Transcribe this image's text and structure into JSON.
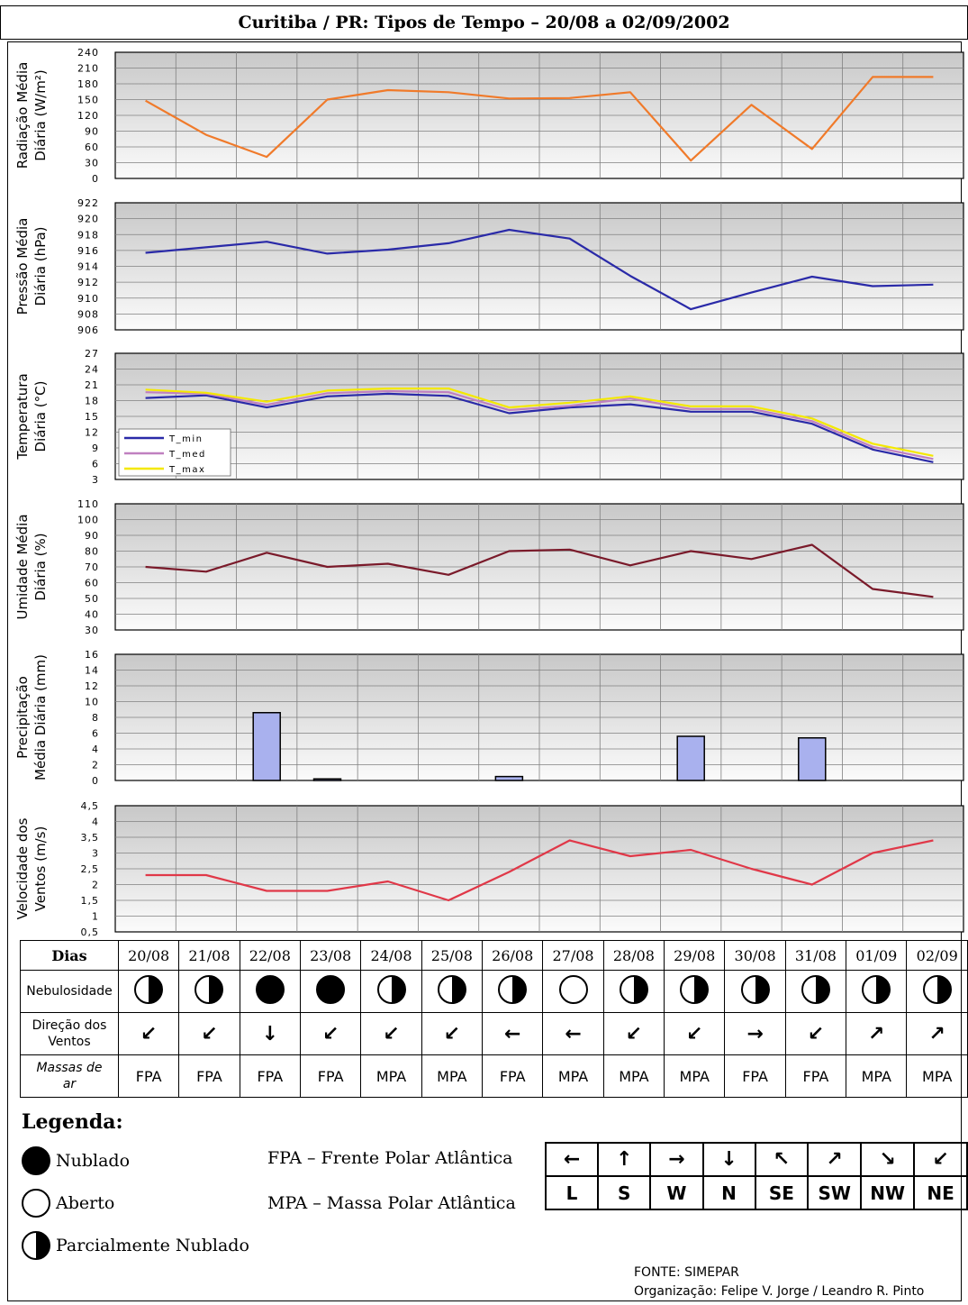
{
  "title": "Curitiba / PR: Tipos de Tempo – 20/08 a 02/09/2002",
  "chart_data": [
    {
      "type": "line",
      "ylabel_line1": "Radiação Média",
      "ylabel_line2": "Diária (W/m²)",
      "ylim": [
        0,
        240
      ],
      "yticks": [
        "0",
        "30",
        "60",
        "90",
        "120",
        "150",
        "180",
        "210",
        "240"
      ],
      "series": [
        {
          "color": "#f07a2a",
          "values": [
            148,
            83,
            41,
            150,
            168,
            164,
            152,
            153,
            164,
            34,
            140,
            56,
            193,
            193
          ]
        }
      ]
    },
    {
      "type": "line",
      "ylabel_line1": "Pressão Média",
      "ylabel_line2": "Diária (hPa)",
      "ylim": [
        906,
        922
      ],
      "yticks": [
        "906",
        "908",
        "910",
        "912",
        "914",
        "916",
        "918",
        "920",
        "922"
      ],
      "series": [
        {
          "color": "#2a2aa8",
          "values": [
            915.7,
            916.4,
            917.1,
            915.6,
            916.1,
            916.9,
            918.6,
            917.5,
            912.8,
            908.6,
            910.7,
            912.7,
            911.5,
            911.7
          ]
        }
      ]
    },
    {
      "type": "line",
      "ylabel_line1": "Temperatura",
      "ylabel_line2": "Diária (°C)",
      "ylim": [
        3,
        27
      ],
      "yticks": [
        "3",
        "6",
        "9",
        "12",
        "15",
        "18",
        "21",
        "24",
        "27"
      ],
      "legend": "bottom-left",
      "series": [
        {
          "name": "T_min",
          "color": "#2a2aa8",
          "values": [
            18.5,
            19.0,
            16.7,
            18.8,
            19.3,
            18.9,
            15.6,
            16.7,
            17.3,
            15.9,
            15.9,
            13.6,
            8.7,
            6.3
          ]
        },
        {
          "name": "T_med",
          "color": "#c080c0",
          "values": [
            19.6,
            19.3,
            17.2,
            19.4,
            19.8,
            19.6,
            16.2,
            17.0,
            18.4,
            16.4,
            16.4,
            14.1,
            9.2,
            6.9
          ]
        },
        {
          "name": "T_max",
          "color": "#f4e800",
          "values": [
            20.1,
            19.5,
            17.8,
            19.9,
            20.3,
            20.3,
            16.7,
            17.6,
            18.8,
            16.9,
            16.9,
            14.6,
            9.8,
            7.5
          ]
        }
      ]
    },
    {
      "type": "line",
      "ylabel_line1": "Umidade Média",
      "ylabel_line2": "Diária (%)",
      "ylim": [
        30,
        110
      ],
      "yticks": [
        "30",
        "40",
        "50",
        "60",
        "70",
        "80",
        "90",
        "100",
        "110"
      ],
      "series": [
        {
          "color": "#7a1a2a",
          "values": [
            70,
            67,
            79,
            70,
            72,
            65,
            80,
            81,
            71,
            80,
            75,
            84,
            56,
            51
          ]
        }
      ]
    },
    {
      "type": "bar",
      "ylabel_line1": "Precipitação",
      "ylabel_line2": "Média Diária (mm)",
      "ylim": [
        0,
        16
      ],
      "yticks": [
        "0",
        "2",
        "4",
        "6",
        "8",
        "10",
        "12",
        "14",
        "16"
      ],
      "series": [
        {
          "color": "#a9b1ee",
          "values": [
            0,
            0,
            8.6,
            0.2,
            0,
            0,
            0.5,
            0,
            0,
            5.6,
            0,
            5.4,
            0,
            0
          ]
        }
      ]
    },
    {
      "type": "line",
      "ylabel_line1": "Velocidade dos",
      "ylabel_line2": "Ventos (m/s)",
      "ylim": [
        0.5,
        4.5
      ],
      "yticks": [
        "0,5",
        "1",
        "1,5",
        "2",
        "2,5",
        "3",
        "3,5",
        "4",
        "4,5"
      ],
      "series": [
        {
          "color": "#e03848",
          "values": [
            2.3,
            2.3,
            1.8,
            1.8,
            2.1,
            1.5,
            2.4,
            3.4,
            2.9,
            3.1,
            2.5,
            2.0,
            3.0,
            3.4
          ]
        }
      ]
    }
  ],
  "table": {
    "row_labels": {
      "days": "Dias",
      "cloud": "Nebulosidade",
      "wind_line1": "Direção dos",
      "wind_line2": "Ventos",
      "mass_line1": "Massas de",
      "mass_line2": "ar"
    },
    "days": [
      "20/08",
      "21/08",
      "22/08",
      "23/08",
      "24/08",
      "25/08",
      "26/08",
      "27/08",
      "28/08",
      "29/08",
      "30/08",
      "31/08",
      "01/09",
      "02/09"
    ],
    "cloud": [
      "half",
      "half",
      "full",
      "full",
      "half",
      "half",
      "half",
      "open",
      "half",
      "half",
      "half",
      "half",
      "half",
      "half"
    ],
    "wind_arrows": [
      "↙",
      "↙",
      "↓",
      "↙",
      "↙",
      "↙",
      "←",
      "←",
      "↙",
      "↙",
      "→",
      "↙",
      "↗",
      "↗"
    ],
    "air_masses": [
      "FPA",
      "FPA",
      "FPA",
      "FPA",
      "MPA",
      "MPA",
      "FPA",
      "MPA",
      "MPA",
      "MPA",
      "FPA",
      "FPA",
      "MPA",
      "MPA"
    ]
  },
  "legend": {
    "title": "Legenda:",
    "cloud_items": [
      {
        "kind": "full",
        "label": "Nublado"
      },
      {
        "kind": "open",
        "label": "Aberto"
      },
      {
        "kind": "half",
        "label": "Parcialmente Nublado"
      }
    ],
    "abbreviations": [
      "FPA – Frente Polar Atlântica",
      "MPA – Massa Polar Atlântica"
    ],
    "directions": [
      {
        "arrow": "←",
        "label": "L"
      },
      {
        "arrow": "↑",
        "label": "S"
      },
      {
        "arrow": "→",
        "label": "W"
      },
      {
        "arrow": "↓",
        "label": "N"
      },
      {
        "arrow": "↖",
        "label": "SE"
      },
      {
        "arrow": "↗",
        "label": "SW"
      },
      {
        "arrow": "↘",
        "label": "NW"
      },
      {
        "arrow": "↙",
        "label": "NE"
      }
    ]
  },
  "credits": {
    "source": "FONTE: SIMEPAR",
    "organization": "Organização: Felipe V. Jorge / Leandro R. Pinto"
  }
}
